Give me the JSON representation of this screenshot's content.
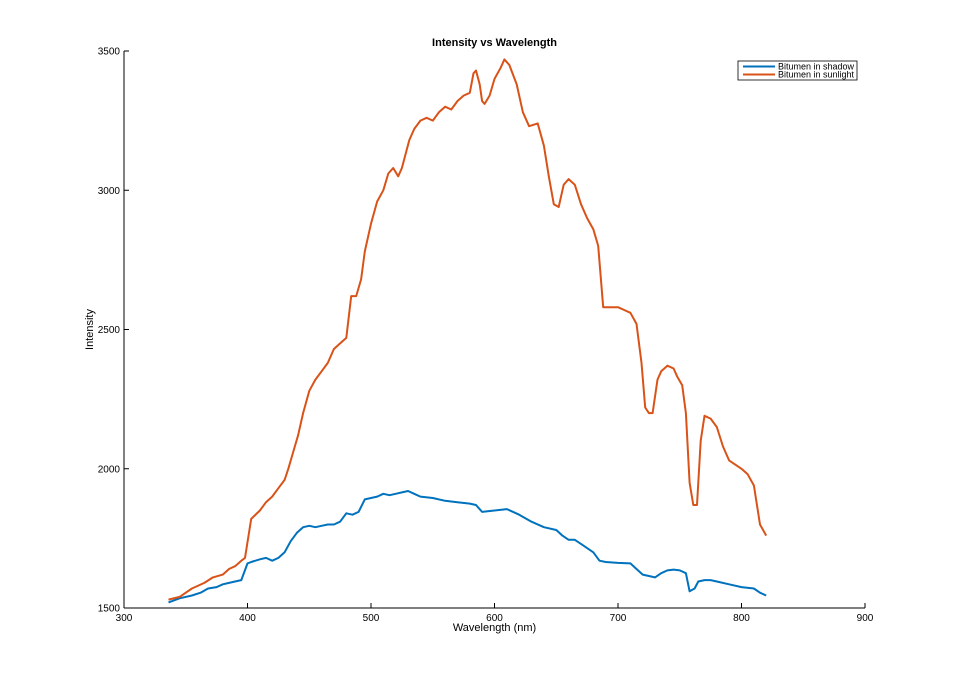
{
  "chart_data": {
    "type": "line",
    "title": "Intensity vs Wavelength",
    "xlabel": "Wavelength (nm)",
    "ylabel": "Intensity",
    "xlim": [
      300,
      900
    ],
    "ylim": [
      1500,
      3500
    ],
    "xticks": [
      300,
      400,
      500,
      600,
      700,
      800,
      900
    ],
    "yticks": [
      1500,
      2000,
      2500,
      3000,
      3500
    ],
    "grid": false,
    "legend": "top-right",
    "series": [
      {
        "name": "Bitumen in shadow",
        "color": "#0072bd",
        "x": [
          336,
          345,
          355,
          362,
          368,
          375,
          380,
          385,
          390,
          395,
          400,
          403,
          410,
          415,
          420,
          425,
          430,
          435,
          440,
          445,
          450,
          455,
          460,
          465,
          470,
          475,
          480,
          485,
          490,
          495,
          500,
          505,
          510,
          515,
          520,
          525,
          530,
          535,
          540,
          550,
          560,
          570,
          580,
          585,
          590,
          600,
          610,
          620,
          630,
          640,
          650,
          655,
          660,
          665,
          670,
          675,
          680,
          685,
          690,
          700,
          710,
          715,
          720,
          725,
          730,
          735,
          740,
          745,
          750,
          755,
          758,
          762,
          765,
          770,
          775,
          780,
          790,
          800,
          810,
          815,
          820
        ],
        "values": [
          1520,
          1535,
          1545,
          1555,
          1570,
          1575,
          1585,
          1590,
          1595,
          1600,
          1660,
          1665,
          1675,
          1680,
          1670,
          1680,
          1700,
          1740,
          1770,
          1790,
          1795,
          1790,
          1795,
          1800,
          1800,
          1810,
          1840,
          1835,
          1845,
          1890,
          1895,
          1900,
          1910,
          1905,
          1910,
          1915,
          1920,
          1910,
          1900,
          1895,
          1885,
          1880,
          1875,
          1870,
          1845,
          1850,
          1855,
          1835,
          1810,
          1790,
          1780,
          1760,
          1745,
          1745,
          1730,
          1715,
          1700,
          1670,
          1665,
          1662,
          1660,
          1640,
          1620,
          1615,
          1610,
          1625,
          1635,
          1638,
          1635,
          1625,
          1560,
          1570,
          1595,
          1600,
          1600,
          1595,
          1585,
          1575,
          1570,
          1555,
          1545
        ]
      },
      {
        "name": "Bitumen in sunlight",
        "color": "#d95319",
        "x": [
          336,
          345,
          355,
          365,
          372,
          380,
          385,
          390,
          395,
          398,
          403,
          410,
          415,
          420,
          425,
          430,
          433,
          437,
          441,
          445,
          450,
          455,
          460,
          465,
          470,
          475,
          480,
          484,
          488,
          492,
          495,
          500,
          505,
          510,
          514,
          518,
          522,
          525,
          528,
          531,
          535,
          540,
          545,
          550,
          555,
          560,
          565,
          570,
          575,
          580,
          583,
          585,
          588,
          590,
          592,
          596,
          600,
          605,
          608,
          612,
          618,
          623,
          628,
          635,
          640,
          644,
          648,
          652,
          656,
          660,
          665,
          670,
          675,
          680,
          684,
          688,
          695,
          700,
          705,
          710,
          715,
          719,
          722,
          725,
          728,
          732,
          735,
          740,
          745,
          748,
          752,
          755,
          758,
          761,
          764,
          767,
          770,
          775,
          780,
          785,
          790,
          800,
          805,
          810,
          815,
          820
        ],
        "values": [
          1530,
          1540,
          1570,
          1590,
          1610,
          1620,
          1640,
          1650,
          1670,
          1680,
          1820,
          1850,
          1880,
          1900,
          1930,
          1960,
          2000,
          2060,
          2120,
          2200,
          2280,
          2320,
          2350,
          2380,
          2430,
          2450,
          2470,
          2620,
          2620,
          2680,
          2780,
          2880,
          2960,
          3000,
          3060,
          3080,
          3050,
          3080,
          3130,
          3180,
          3220,
          3250,
          3260,
          3250,
          3280,
          3300,
          3290,
          3320,
          3340,
          3350,
          3420,
          3430,
          3380,
          3320,
          3310,
          3340,
          3400,
          3440,
          3470,
          3450,
          3380,
          3280,
          3230,
          3240,
          3160,
          3050,
          2950,
          2940,
          3020,
          3040,
          3020,
          2950,
          2900,
          2860,
          2800,
          2580,
          2580,
          2580,
          2570,
          2560,
          2520,
          2380,
          2220,
          2200,
          2200,
          2320,
          2350,
          2370,
          2360,
          2330,
          2300,
          2200,
          1950,
          1870,
          1870,
          2100,
          2190,
          2180,
          2150,
          2080,
          2030,
          2000,
          1980,
          1940,
          1800,
          1760
        ]
      }
    ]
  }
}
